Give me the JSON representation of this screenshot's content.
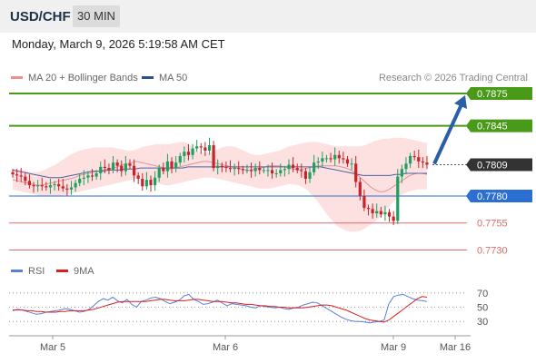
{
  "header": {
    "symbol": "USD/CHF",
    "timeframe": "30 MIN"
  },
  "datetime": "Monday, March 9, 2026 5:19:58 AM CET",
  "legend": {
    "ma20_label": "MA 20 + Bollinger Bands",
    "ma50_label": "MA 50",
    "copyright": "Research © 2026 Trading Central"
  },
  "rsi_legend": {
    "rsi_label": "RSI",
    "ma_label": "9MA"
  },
  "colors": {
    "resistance": "#4a9a1a",
    "pivot": "#2b6fd1",
    "support": "#e06a6a",
    "current": "#333333",
    "arrow": "#2a5ea8",
    "candle_up": "#1f9f60",
    "candle_down": "#c9232a",
    "band_fill": "#fde0e0",
    "ma20": "#e39494",
    "ma50": "#4b62a5",
    "rsi": "#5b7fd8",
    "rsi_ma": "#d82020"
  },
  "chart_data": [
    {
      "type": "candlestick",
      "title": "USD/CHF",
      "timeframe": "30 MIN",
      "ylim": [
        0.7722,
        0.788
      ],
      "x_tick_labels": [
        "Mar 5",
        "Mar 6",
        "Mar 9",
        "Mar 16"
      ],
      "key_levels": [
        {
          "value": 0.7875,
          "label": "0.7875",
          "kind": "resistance"
        },
        {
          "value": 0.7845,
          "label": "0.7845",
          "kind": "resistance"
        },
        {
          "value": 0.7809,
          "label": "0.7809",
          "kind": "current"
        },
        {
          "value": 0.778,
          "label": "0.7780",
          "kind": "pivot"
        },
        {
          "value": 0.7755,
          "label": "0.7755",
          "kind": "support"
        },
        {
          "value": 0.773,
          "label": "0.7730",
          "kind": "support"
        }
      ],
      "closes": [
        0.78,
        0.7799,
        0.7798,
        0.7794,
        0.779,
        0.7789,
        0.779,
        0.7789,
        0.7788,
        0.779,
        0.7791,
        0.7789,
        0.7787,
        0.7786,
        0.7788,
        0.7792,
        0.7796,
        0.7797,
        0.7799,
        0.7798,
        0.7801,
        0.7807,
        0.7806,
        0.7804,
        0.7811,
        0.7808,
        0.7803,
        0.781,
        0.7808,
        0.7799,
        0.7796,
        0.7789,
        0.7795,
        0.779,
        0.7797,
        0.7806,
        0.7803,
        0.7812,
        0.7806,
        0.7811,
        0.7817,
        0.7821,
        0.7818,
        0.7824,
        0.7826,
        0.7825,
        0.7822,
        0.7827,
        0.7806,
        0.7808,
        0.7807,
        0.7806,
        0.7805,
        0.7806,
        0.7805,
        0.7804,
        0.7804,
        0.7803,
        0.7806,
        0.7804,
        0.7804,
        0.7804,
        0.7801,
        0.7801,
        0.7804,
        0.7805,
        0.7809,
        0.7806,
        0.7804,
        0.7803,
        0.7796,
        0.7802,
        0.7811,
        0.7812,
        0.7815,
        0.7815,
        0.7814,
        0.7818,
        0.7815,
        0.7814,
        0.781,
        0.781,
        0.7793,
        0.778,
        0.7769,
        0.7768,
        0.7764,
        0.7766,
        0.7763,
        0.7765,
        0.7761,
        0.7757,
        0.7798,
        0.7805,
        0.781,
        0.7817,
        0.7816,
        0.7812,
        0.7811,
        0.7809
      ],
      "ma20": [
        0.7795,
        0.7794,
        0.7793,
        0.7792,
        0.7791,
        0.779,
        0.779,
        0.7791,
        0.7792,
        0.7793,
        0.7794,
        0.7795,
        0.7796,
        0.7797,
        0.7799,
        0.78,
        0.7801,
        0.7802,
        0.7803,
        0.7804,
        0.7805,
        0.7806,
        0.7807,
        0.7809,
        0.781,
        0.7811,
        0.7812,
        0.7811,
        0.781,
        0.7809,
        0.7808,
        0.7807,
        0.7806,
        0.7805,
        0.7806,
        0.7807,
        0.7808,
        0.7809,
        0.781,
        0.7811,
        0.7812,
        0.7812,
        0.7811,
        0.781,
        0.7809,
        0.7808,
        0.7807,
        0.7806,
        0.7805,
        0.7804,
        0.7804,
        0.7805,
        0.7806,
        0.7807,
        0.7808,
        0.7808,
        0.7808,
        0.7807,
        0.7806,
        0.7805,
        0.7804,
        0.7805,
        0.7806,
        0.7807,
        0.7808,
        0.7808,
        0.7808,
        0.7808,
        0.7808,
        0.7807,
        0.7806,
        0.7804,
        0.7801,
        0.7797,
        0.7793,
        0.7789,
        0.7786,
        0.7784,
        0.7784,
        0.7786,
        0.7789,
        0.7792,
        0.7795,
        0.7798,
        0.78,
        0.7801,
        0.7801,
        0.78
      ],
      "ma50": [
        0.7804,
        0.7803,
        0.7802,
        0.7801,
        0.78,
        0.7799,
        0.7798,
        0.7797,
        0.7797,
        0.7797,
        0.7798,
        0.7799,
        0.78,
        0.7801,
        0.7802,
        0.7803,
        0.7803,
        0.7803,
        0.7804,
        0.7804,
        0.7804,
        0.7805,
        0.7805,
        0.7805,
        0.7806,
        0.7806,
        0.7806,
        0.7806,
        0.7806,
        0.7806,
        0.7806,
        0.7806,
        0.7806,
        0.7807,
        0.7807,
        0.7807,
        0.7807,
        0.7807,
        0.7807,
        0.7807,
        0.7807,
        0.7807,
        0.7807,
        0.7807,
        0.7807,
        0.7807,
        0.7807,
        0.7807,
        0.7807,
        0.7807,
        0.7807,
        0.7807,
        0.7807,
        0.7807,
        0.7807,
        0.7807,
        0.7807,
        0.7807,
        0.7807,
        0.7806,
        0.7805,
        0.7804,
        0.7803,
        0.7802,
        0.7801,
        0.78,
        0.7799,
        0.7799,
        0.7799,
        0.7799,
        0.7799,
        0.7799,
        0.78,
        0.78,
        0.7801,
        0.7801,
        0.7801,
        0.7801,
        0.7801
      ],
      "bb_upper": [
        0.7806,
        0.7805,
        0.7804,
        0.7803,
        0.7802,
        0.7802,
        0.7803,
        0.7805,
        0.7807,
        0.7809,
        0.7812,
        0.7815,
        0.7818,
        0.782,
        0.7822,
        0.7823,
        0.7824,
        0.7825,
        0.7825,
        0.7825,
        0.7825,
        0.7825,
        0.7824,
        0.7823,
        0.7822,
        0.7822,
        0.7823,
        0.7825,
        0.7826,
        0.7827,
        0.7828,
        0.7828,
        0.7828,
        0.7828,
        0.7829,
        0.783,
        0.783,
        0.7828,
        0.7824,
        0.7821,
        0.782,
        0.782,
        0.7821,
        0.7823,
        0.7825,
        0.7826,
        0.7826,
        0.7825,
        0.7823,
        0.7821,
        0.7819,
        0.7818,
        0.7818,
        0.7819,
        0.782,
        0.7821,
        0.7822,
        0.7824,
        0.7826,
        0.7827,
        0.7828,
        0.7829,
        0.783,
        0.783,
        0.783,
        0.7829,
        0.7828,
        0.7827,
        0.7826,
        0.7826,
        0.7826,
        0.7826,
        0.7826,
        0.7826,
        0.7827,
        0.7829,
        0.7831,
        0.7832,
        0.7833,
        0.7833,
        0.7834,
        0.7834,
        0.7834,
        0.7833,
        0.7832,
        0.7831,
        0.783,
        0.7829
      ],
      "bb_lower": [
        0.7786,
        0.7785,
        0.7784,
        0.7783,
        0.7782,
        0.7781,
        0.778,
        0.778,
        0.778,
        0.778,
        0.778,
        0.7781,
        0.7782,
        0.7783,
        0.7784,
        0.7785,
        0.7786,
        0.7787,
        0.7788,
        0.7789,
        0.779,
        0.7791,
        0.7792,
        0.7793,
        0.7794,
        0.7795,
        0.7796,
        0.7797,
        0.7796,
        0.7795,
        0.7793,
        0.7791,
        0.779,
        0.779,
        0.7791,
        0.7792,
        0.7793,
        0.7794,
        0.7795,
        0.7796,
        0.7797,
        0.7797,
        0.7797,
        0.7796,
        0.7795,
        0.7794,
        0.7793,
        0.7792,
        0.7791,
        0.779,
        0.7789,
        0.7788,
        0.7787,
        0.7787,
        0.7787,
        0.7788,
        0.7789,
        0.779,
        0.7791,
        0.7791,
        0.779,
        0.7788,
        0.7785,
        0.778,
        0.7775,
        0.7769,
        0.7763,
        0.7758,
        0.7753,
        0.775,
        0.7748,
        0.7747,
        0.7747,
        0.7748,
        0.775,
        0.7753,
        0.7756,
        0.776,
        0.7765,
        0.777,
        0.7775,
        0.7779,
        0.7782,
        0.7784,
        0.7785,
        0.7786,
        0.7786,
        0.7786
      ]
    },
    {
      "type": "line",
      "title": "RSI",
      "ylim": [
        20,
        80
      ],
      "yticks": [
        30,
        50,
        70
      ],
      "series": [
        {
          "name": "RSI",
          "values": [
            45,
            47,
            46,
            44,
            42,
            40,
            41,
            43,
            44,
            45,
            46,
            48,
            47,
            45,
            43,
            44,
            47,
            52,
            58,
            62,
            60,
            64,
            59,
            56,
            61,
            54,
            50,
            58,
            60,
            63,
            64,
            62,
            58,
            55,
            57,
            60,
            66,
            68,
            61,
            58,
            54,
            55,
            57,
            60,
            56,
            52,
            55,
            54,
            53,
            52,
            50,
            49,
            52,
            51,
            50,
            49,
            50,
            48,
            47,
            49,
            50,
            53,
            55,
            57,
            56,
            52,
            48,
            44,
            40,
            36,
            33,
            31,
            30,
            30,
            29,
            28,
            29,
            30,
            32,
            55,
            65,
            67,
            68,
            65,
            62,
            60,
            59,
            58
          ]
        },
        {
          "name": "9MA",
          "values": [
            46,
            46,
            46,
            45,
            45,
            44,
            44,
            43,
            43,
            43,
            44,
            44,
            45,
            45,
            45,
            45,
            46,
            47,
            49,
            51,
            53,
            55,
            57,
            58,
            58,
            58,
            58,
            58,
            58,
            59,
            60,
            61,
            61,
            60,
            59,
            59,
            59,
            60,
            61,
            61,
            60,
            59,
            58,
            58,
            58,
            57,
            56,
            56,
            55,
            54,
            54,
            53,
            52,
            52,
            51,
            51,
            50,
            50,
            49,
            49,
            49,
            49,
            50,
            51,
            52,
            53,
            53,
            52,
            50,
            48,
            46,
            43,
            40,
            37,
            34,
            32,
            31,
            30,
            29,
            32,
            37,
            42,
            47,
            52,
            57,
            62,
            65,
            64
          ]
        }
      ]
    }
  ]
}
